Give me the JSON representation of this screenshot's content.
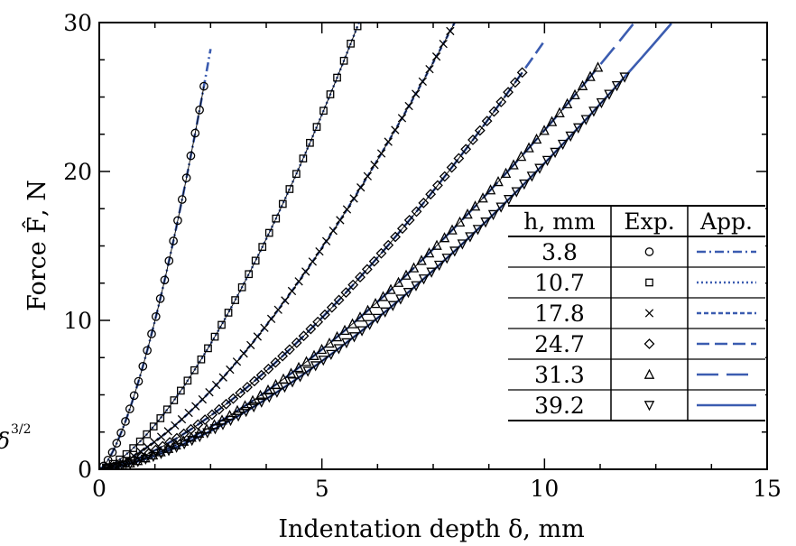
{
  "chart_data": {
    "type": "scatter",
    "xlabel": "Indentation depth δ, mm",
    "ylabel": "Force F̂, N",
    "xlim": [
      0,
      15
    ],
    "ylim": [
      0,
      30
    ],
    "xticks": [
      "0",
      "5",
      "10",
      "15"
    ],
    "yticks": [
      "0",
      "10",
      "20",
      "30"
    ],
    "cut_label": "δ",
    "cut_label_sup": "3/2",
    "legend": {
      "placement": "center-right",
      "headers": [
        "h, mm",
        "Exp.",
        "App."
      ],
      "rows": [
        {
          "h": "3.8",
          "marker": "circle",
          "line": "dash-dot"
        },
        {
          "h": "10.7",
          "marker": "square",
          "line": "dotted"
        },
        {
          "h": "17.8",
          "marker": "x",
          "line": "short-dash"
        },
        {
          "h": "24.7",
          "marker": "diamond",
          "line": "dashed"
        },
        {
          "h": "31.3",
          "marker": "triangle-up",
          "line": "long-dash"
        },
        {
          "h": "39.2",
          "marker": "triangle-down",
          "line": "solid"
        }
      ]
    },
    "series": [
      {
        "h": 3.8,
        "marker": "circle",
        "dash": "10 4 2 4",
        "k": 7.14,
        "n": 1.5,
        "exp_xmax": 2.35,
        "exp_count": 24,
        "app_xmax": 2.5
      },
      {
        "h": 10.7,
        "marker": "square",
        "dash": "2 3",
        "k": 2.13,
        "n": 1.5,
        "exp_xmax": 5.8,
        "exp_count": 38,
        "app_xmax": 6.2
      },
      {
        "h": 17.8,
        "marker": "x",
        "dash": "5 3",
        "k": 1.33,
        "n": 1.5,
        "exp_xmax": 8.5,
        "exp_count": 55,
        "app_xmax": 9.2
      },
      {
        "h": 24.7,
        "marker": "diamond",
        "dash": "14 6",
        "k": 0.91,
        "n": 1.5,
        "exp_xmax": 9.5,
        "exp_count": 60,
        "app_xmax": 10.0
      },
      {
        "h": 31.3,
        "marker": "triangle-up",
        "dash": "24 9",
        "k": 0.72,
        "n": 1.5,
        "exp_xmax": 11.2,
        "exp_count": 65,
        "app_xmax": 12.0
      },
      {
        "h": 39.2,
        "marker": "triangle-down",
        "dash": "",
        "k": 0.65,
        "n": 1.5,
        "exp_xmax": 11.8,
        "exp_count": 68,
        "app_xmax": 12.85
      }
    ],
    "colors": {
      "approx_line": "#3b5cb0",
      "experiment_marker": "#000000",
      "frame": "#000000"
    }
  }
}
